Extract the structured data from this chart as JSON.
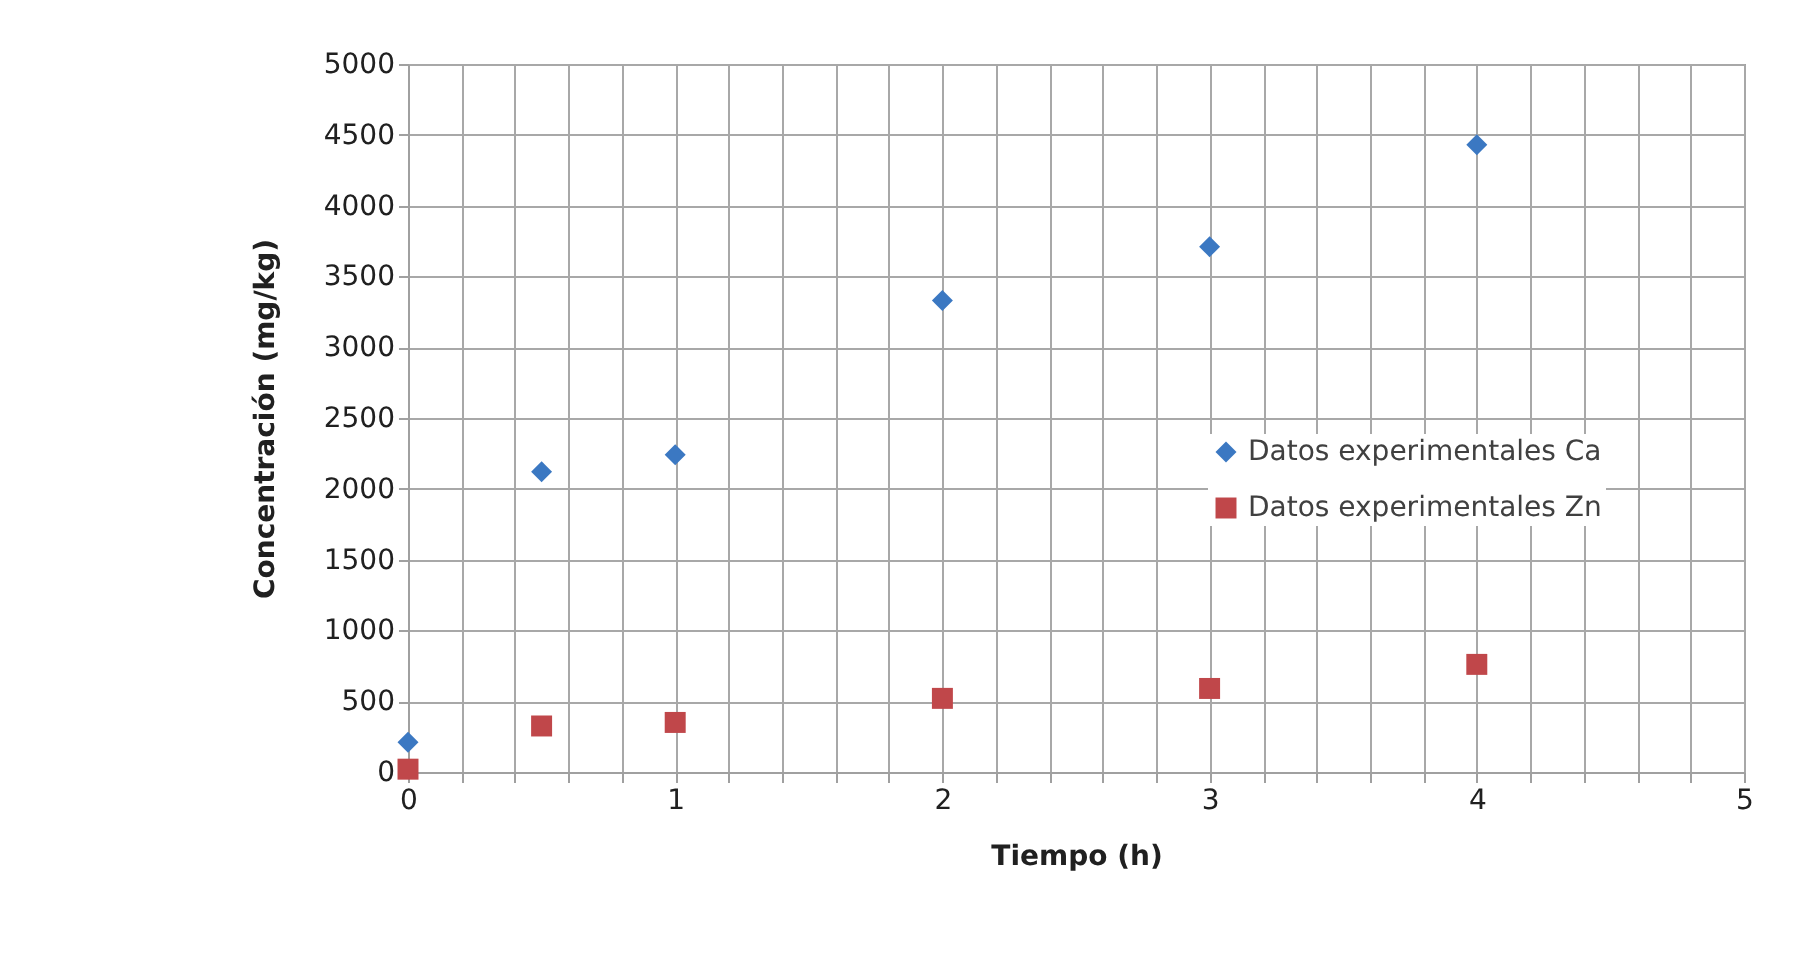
{
  "chart_data": {
    "type": "scatter",
    "xlabel": "Tiempo (h)",
    "ylabel": "Concentración (mg/kg)",
    "xlim": [
      0,
      5
    ],
    "ylim": [
      0,
      5000
    ],
    "xticks": [
      0,
      {
        "value": 0.2,
        "label": null
      },
      {
        "value": 0.4,
        "label": null
      },
      {
        "value": 0.6,
        "label": null
      },
      {
        "value": 0.8,
        "label": null
      },
      1,
      {
        "value": 1.2,
        "label": null
      },
      {
        "value": 1.4,
        "label": null
      },
      {
        "value": 1.6,
        "label": null
      },
      {
        "value": 1.8,
        "label": null
      },
      2,
      {
        "value": 2.2,
        "label": null
      },
      {
        "value": 2.4,
        "label": null
      },
      {
        "value": 2.6,
        "label": null
      },
      {
        "value": 2.8,
        "label": null
      },
      3,
      {
        "value": 3.2,
        "label": null
      },
      {
        "value": 3.4,
        "label": null
      },
      {
        "value": 3.6,
        "label": null
      },
      {
        "value": 3.8,
        "label": null
      },
      4,
      {
        "value": 4.2,
        "label": null
      },
      {
        "value": 4.4,
        "label": null
      },
      {
        "value": 4.6,
        "label": null
      },
      {
        "value": 4.8,
        "label": null
      },
      5
    ],
    "yticks": [
      0,
      500,
      1000,
      1500,
      2000,
      2500,
      3000,
      3500,
      4000,
      4500,
      5000
    ],
    "grid": true,
    "legend": "right",
    "x": [
      0,
      0.5,
      1,
      2,
      3,
      4
    ],
    "series": [
      {
        "name": "Datos experimentales Ca",
        "color": "#3b78c2",
        "marker": "diamond",
        "values": [
          210,
          2120,
          2240,
          3330,
          3710,
          4430
        ]
      },
      {
        "name": "Datos experimentales Zn",
        "color": "#c0474a",
        "marker": "square",
        "values": [
          20,
          325,
          350,
          520,
          590,
          760
        ]
      }
    ]
  }
}
